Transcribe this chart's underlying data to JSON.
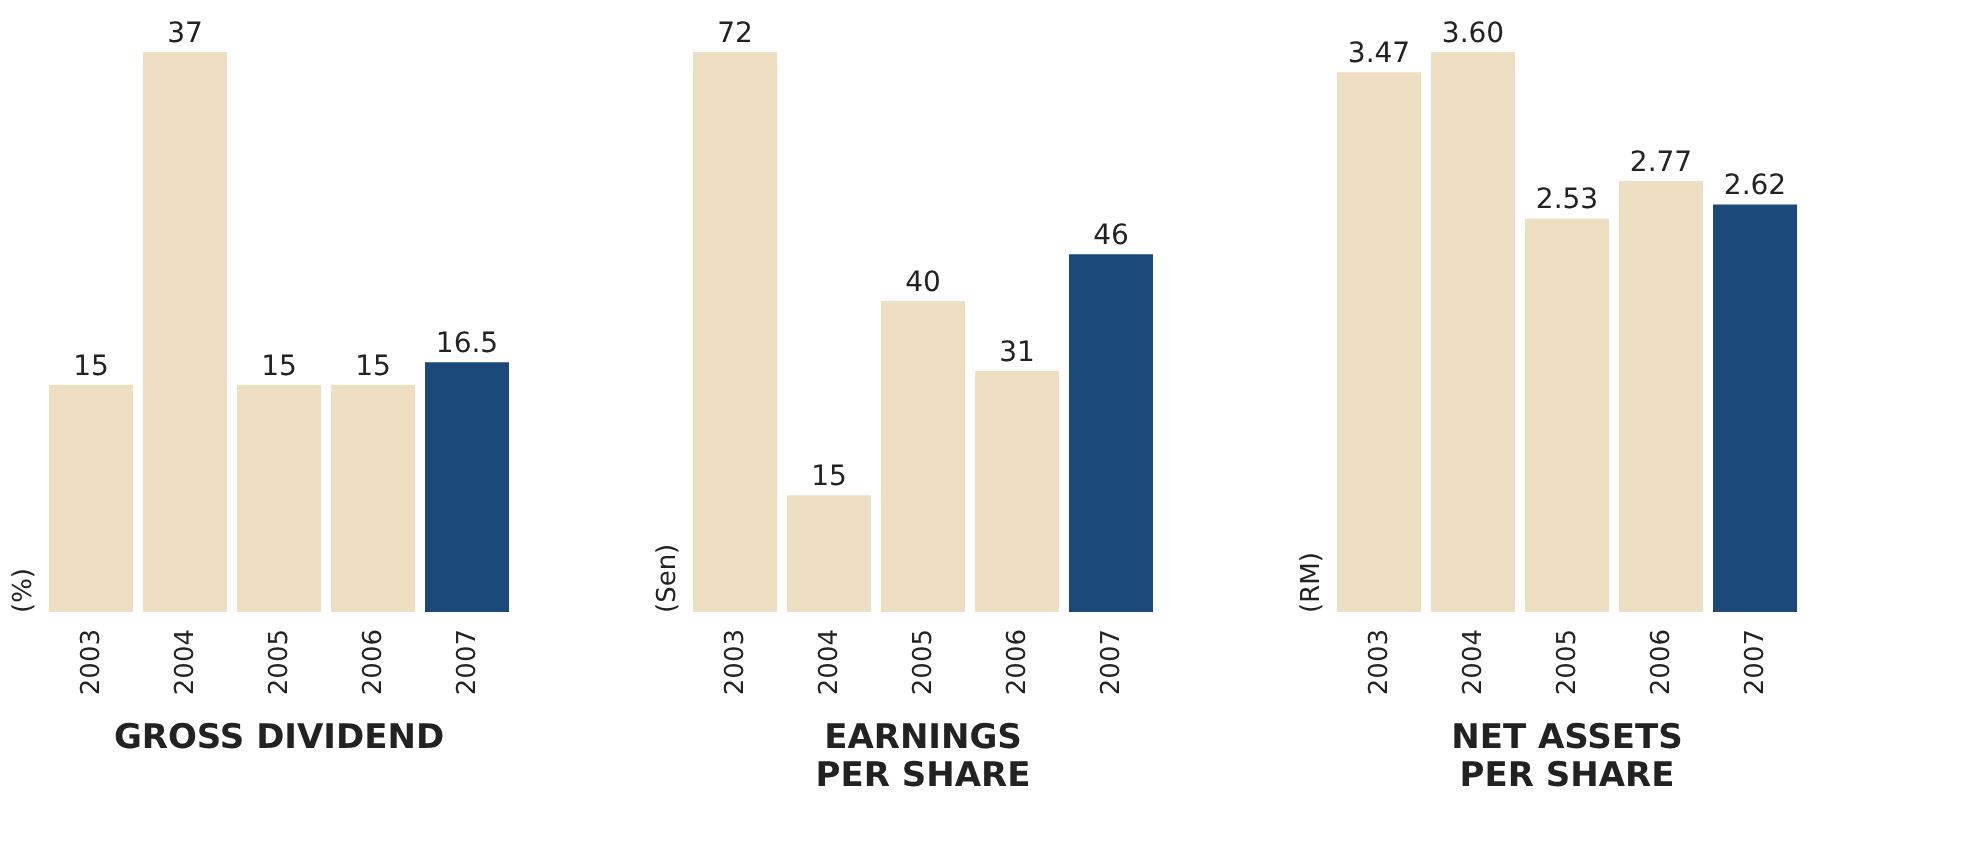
{
  "chart_data": [
    {
      "type": "bar",
      "title": "GROSS DIVIDEND",
      "ylabel": "(%)",
      "categories": [
        "2003",
        "2004",
        "2005",
        "2006",
        "2007"
      ],
      "values": [
        15,
        37,
        15,
        15,
        16.5
      ],
      "colors": [
        "#efdfc2",
        "#efdfc2",
        "#efdfc2",
        "#efdfc2",
        "#1b4a7a"
      ],
      "data_labels": true
    },
    {
      "type": "bar",
      "title": "EARNINGS PER SHARE",
      "ylabel": "(Sen)",
      "categories": [
        "2003",
        "2004",
        "2005",
        "2006",
        "2007"
      ],
      "values": [
        72,
        15,
        40,
        31,
        46
      ],
      "colors": [
        "#efdfc2",
        "#efdfc2",
        "#efdfc2",
        "#efdfc2",
        "#1b4a7a"
      ],
      "data_labels": true
    },
    {
      "type": "bar",
      "title": "NET ASSETS PER SHARE",
      "ylabel": "(RM)",
      "categories": [
        "2003",
        "2004",
        "2005",
        "2006",
        "2007"
      ],
      "values": [
        3.47,
        3.6,
        2.53,
        2.77,
        2.62
      ],
      "value_labels": [
        "3.47",
        "3.60",
        "2.53",
        "2.77",
        "2.62"
      ],
      "colors": [
        "#efdfc2",
        "#efdfc2",
        "#efdfc2",
        "#efdfc2",
        "#1b4a7a"
      ]
    }
  ]
}
